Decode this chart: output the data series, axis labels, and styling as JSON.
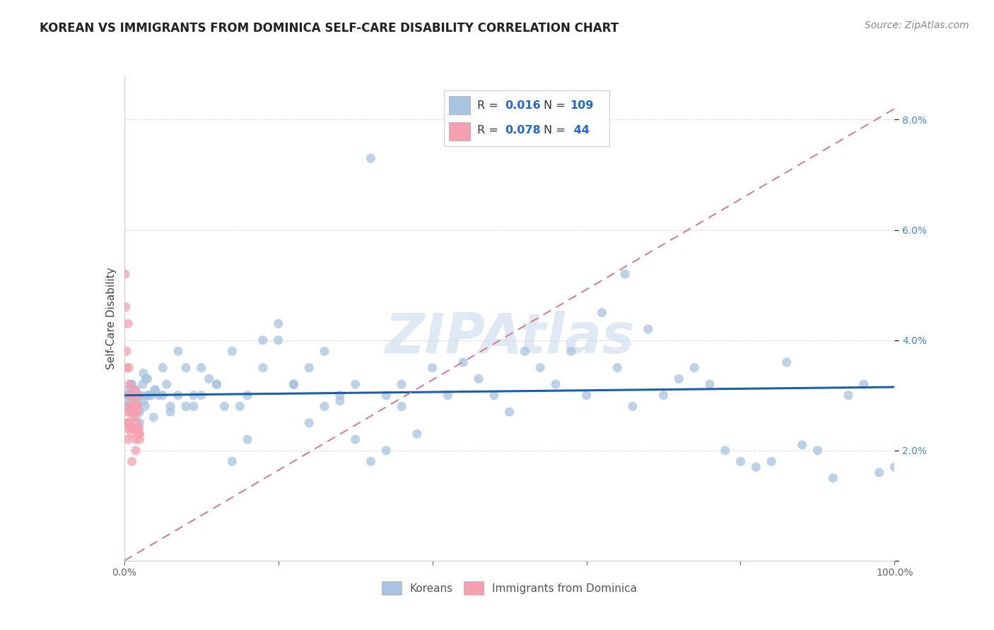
{
  "title": "KOREAN VS IMMIGRANTS FROM DOMINICA SELF-CARE DISABILITY CORRELATION CHART",
  "source": "Source: ZipAtlas.com",
  "ylabel": "Self-Care Disability",
  "watermark": "ZIPAtlas",
  "xlim": [
    0,
    100
  ],
  "ylim": [
    0,
    8.8
  ],
  "xtick_vals": [
    0,
    20,
    40,
    60,
    80,
    100
  ],
  "xtick_labels": [
    "0.0%",
    "",
    "",
    "",
    "",
    "100.0%"
  ],
  "ytick_vals": [
    0,
    2,
    4,
    6,
    8
  ],
  "ytick_labels": [
    "",
    "2.0%",
    "4.0%",
    "6.0%",
    "8.0%"
  ],
  "korean_R": 0.016,
  "korean_N": 109,
  "dominica_R": 0.078,
  "dominica_N": 44,
  "korean_color": "#a8c4e0",
  "dominica_color": "#f4a0b0",
  "korean_line_color": "#1a5fa8",
  "dominica_line_color": "#d08090",
  "background_color": "#ffffff",
  "grid_color": "#dddddd",
  "korean_line_y0": 3.0,
  "korean_line_y1": 3.15,
  "dominica_line_y0": 0.0,
  "dominica_line_y1": 8.2,
  "korean_x": [
    0.3,
    0.5,
    0.6,
    0.7,
    0.8,
    0.9,
    1.0,
    1.1,
    1.2,
    1.3,
    1.4,
    1.5,
    1.6,
    1.7,
    1.8,
    1.9,
    2.0,
    2.2,
    2.4,
    2.5,
    2.7,
    2.8,
    3.0,
    3.2,
    3.5,
    3.8,
    4.0,
    4.5,
    5.0,
    5.5,
    6.0,
    7.0,
    8.0,
    9.0,
    10.0,
    11.0,
    12.0,
    13.0,
    14.0,
    15.0,
    16.0,
    18.0,
    20.0,
    22.0,
    24.0,
    26.0,
    28.0,
    30.0,
    32.0,
    34.0,
    36.0,
    38.0,
    40.0,
    42.0,
    44.0,
    46.0,
    48.0,
    50.0,
    52.0,
    54.0,
    56.0,
    58.0,
    60.0,
    62.0,
    64.0,
    65.0,
    66.0,
    68.0,
    70.0,
    72.0,
    74.0,
    76.0,
    78.0,
    80.0,
    82.0,
    84.0,
    86.0,
    88.0,
    90.0,
    92.0,
    94.0,
    96.0,
    98.0,
    100.0,
    1.0,
    1.5,
    2.0,
    2.5,
    3.0,
    4.0,
    5.0,
    6.0,
    7.0,
    8.0,
    9.0,
    32.0,
    10.0,
    12.0,
    14.0,
    16.0,
    18.0,
    20.0,
    22.0,
    24.0,
    26.0,
    28.0,
    30.0,
    34.0,
    36.0
  ],
  "korean_y": [
    2.9,
    3.1,
    2.8,
    3.0,
    2.7,
    3.2,
    2.8,
    3.1,
    2.9,
    3.0,
    2.8,
    3.1,
    2.9,
    3.0,
    2.8,
    3.0,
    2.7,
    3.0,
    3.2,
    2.9,
    2.8,
    3.3,
    3.0,
    3.0,
    3.0,
    2.6,
    3.1,
    3.0,
    3.5,
    3.2,
    2.7,
    3.8,
    3.5,
    2.8,
    3.0,
    3.3,
    3.2,
    2.8,
    1.8,
    2.8,
    2.2,
    3.5,
    4.0,
    3.2,
    2.5,
    2.8,
    3.0,
    2.2,
    1.8,
    2.0,
    3.2,
    2.3,
    3.5,
    3.0,
    3.6,
    3.3,
    3.0,
    2.7,
    3.8,
    3.5,
    3.2,
    3.8,
    3.0,
    4.5,
    3.5,
    5.2,
    2.8,
    4.2,
    3.0,
    3.3,
    3.5,
    3.2,
    2.0,
    1.8,
    1.7,
    1.8,
    3.6,
    2.1,
    2.0,
    1.5,
    3.0,
    3.2,
    1.6,
    1.7,
    3.2,
    2.6,
    2.5,
    3.4,
    3.3,
    3.1,
    3.0,
    2.8,
    3.0,
    2.8,
    3.0,
    7.3,
    3.5,
    3.2,
    3.8,
    3.0,
    4.0,
    4.3,
    3.2,
    3.5,
    3.8,
    2.9,
    3.2,
    3.0,
    2.8
  ],
  "dominica_x": [
    0.1,
    0.2,
    0.3,
    0.4,
    0.5,
    0.6,
    0.7,
    0.8,
    0.9,
    1.0,
    1.1,
    1.2,
    1.3,
    1.4,
    1.5,
    1.6,
    1.7,
    1.8,
    1.9,
    2.0,
    0.3,
    0.4,
    0.5,
    0.6,
    0.7,
    0.8,
    0.9,
    1.0,
    1.1,
    1.2,
    1.3,
    1.4,
    1.5,
    1.6,
    1.7,
    1.8,
    1.9,
    2.0,
    0.2,
    0.3,
    0.5,
    0.8,
    1.0,
    1.5
  ],
  "dominica_y": [
    5.2,
    4.6,
    3.8,
    2.5,
    4.3,
    3.5,
    3.2,
    3.0,
    2.8,
    2.7,
    3.0,
    2.8,
    2.9,
    3.1,
    2.7,
    2.8,
    2.8,
    3.0,
    2.4,
    2.3,
    3.5,
    2.5,
    3.0,
    2.8,
    2.5,
    2.7,
    2.3,
    2.4,
    2.6,
    2.8,
    2.4,
    2.8,
    2.2,
    2.5,
    2.7,
    2.4,
    2.3,
    2.2,
    2.4,
    2.7,
    2.2,
    2.4,
    1.8,
    2.0
  ]
}
